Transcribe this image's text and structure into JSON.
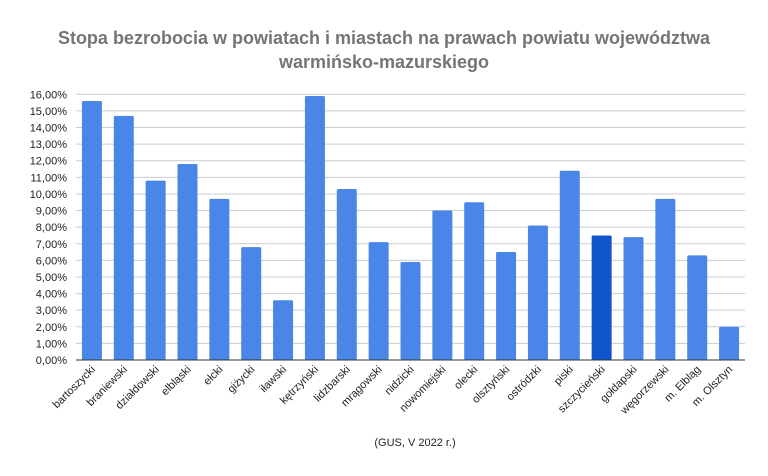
{
  "chart_data": {
    "type": "bar",
    "title": "Stopa bezrobocia w powiatach i miastach na prawach powiatu województwa",
    "title_line2": "warmińsko-mazurskiego",
    "footnote": "(GUS, V 2022 r.)",
    "xlabel": "",
    "ylabel": "",
    "ylim": [
      0,
      16
    ],
    "ytick_step": 1,
    "ytick_labels": [
      "0,00%",
      "1,00%",
      "2,00%",
      "3,00%",
      "4,00%",
      "5,00%",
      "6,00%",
      "7,00%",
      "8,00%",
      "9,00%",
      "10,00%",
      "11,00%",
      "12,00%",
      "13,00%",
      "14,00%",
      "15,00%",
      "16,00%"
    ],
    "grid": true,
    "legend": "none",
    "categories": [
      "bartoszycki",
      "braniewski",
      "działdowski",
      "elbląski",
      "ełcki",
      "giżycki",
      "iławski",
      "kętrzyński",
      "lidzbarski",
      "mrągowski",
      "nidzicki",
      "nowomiejski",
      "olecki",
      "olsztyński",
      "ostródzki",
      "piski",
      "szczycieński",
      "gołdapski",
      "węgorzewski",
      "m. Elbląg",
      "m. Olsztyn"
    ],
    "values": [
      15.6,
      14.7,
      10.8,
      11.8,
      9.7,
      6.8,
      3.6,
      15.9,
      10.3,
      7.1,
      5.9,
      9.0,
      9.5,
      6.5,
      8.1,
      11.4,
      7.5,
      7.4,
      9.7,
      6.3,
      2.0
    ],
    "highlighted_category": "szczycieński",
    "colors": {
      "bar": "#4a86e8",
      "highlight": "#1155cc",
      "grid": "#cccccc",
      "axis": "#333333",
      "title": "#757575"
    }
  }
}
